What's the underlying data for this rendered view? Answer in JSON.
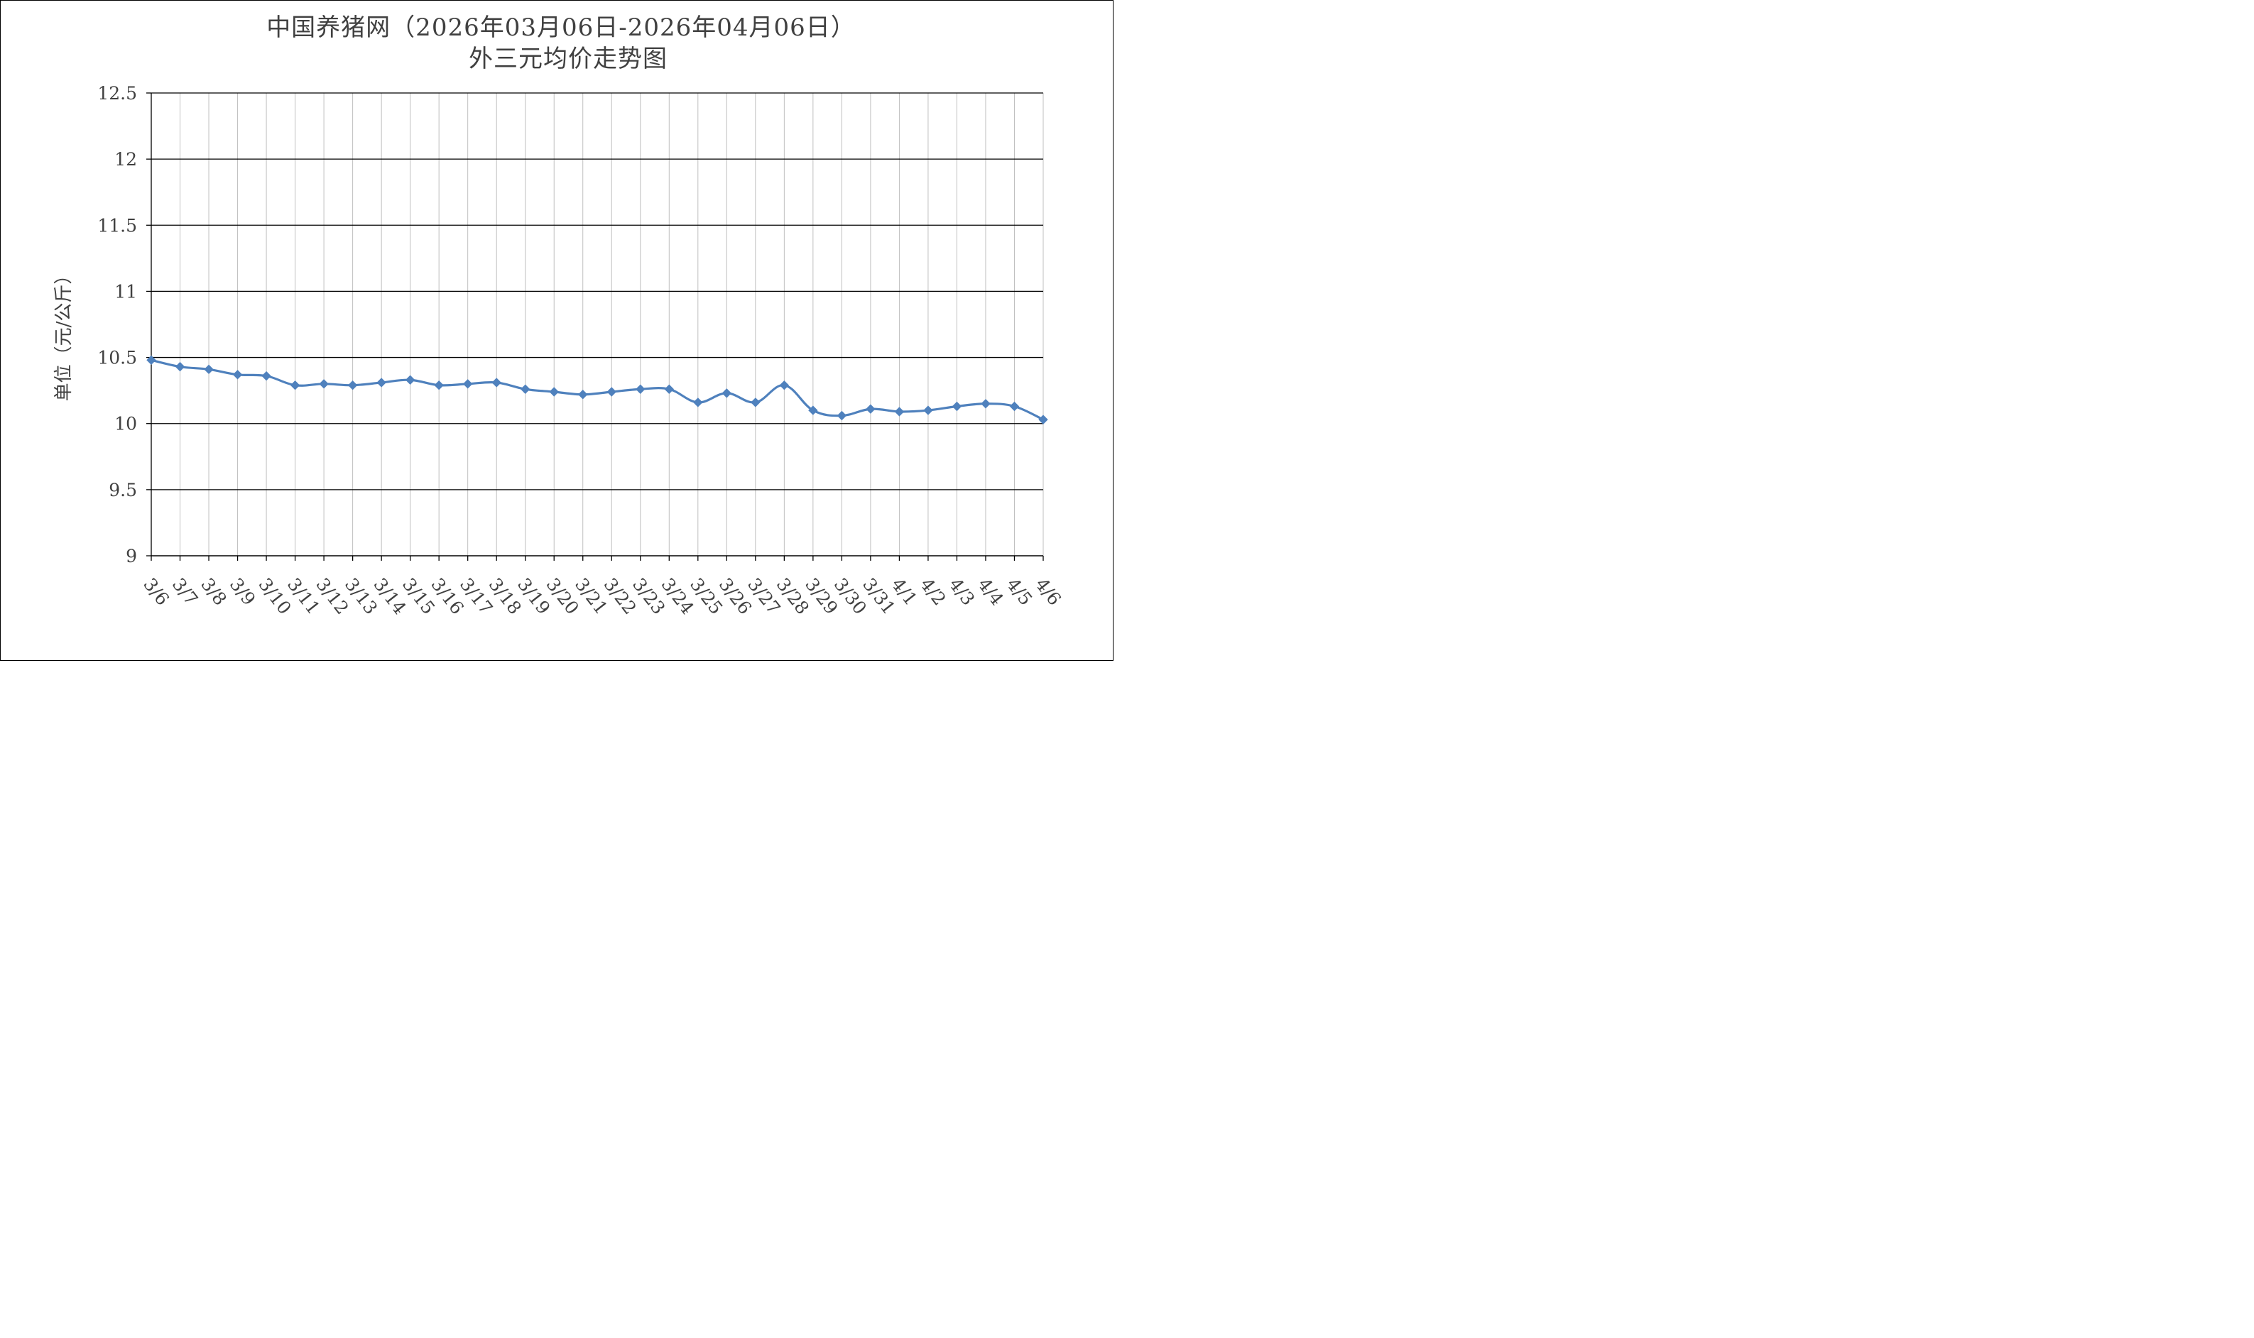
{
  "chart_data": {
    "type": "line",
    "title": "中国养猪网（2026年03月06日-2026年04月06日）",
    "subtitle": "外三元均价走势图",
    "xlabel": "",
    "ylabel": "单位（元/公斤）",
    "ylim": [
      9,
      12.5
    ],
    "yticks": [
      "9",
      "9.5",
      "10",
      "10.5",
      "11",
      "11.5",
      "12",
      "12.5"
    ],
    "grid": "horizontal-and-vertical",
    "series_color": "#4f81bd",
    "categories": [
      "3/6",
      "3/7",
      "3/8",
      "3/9",
      "3/10",
      "3/11",
      "3/12",
      "3/13",
      "3/14",
      "3/15",
      "3/16",
      "3/17",
      "3/18",
      "3/19",
      "3/20",
      "3/21",
      "3/22",
      "3/23",
      "3/24",
      "3/25",
      "3/26",
      "3/27",
      "3/28",
      "3/29",
      "3/30",
      "3/31",
      "4/1",
      "4/2",
      "4/3",
      "4/4",
      "4/5",
      "4/6"
    ],
    "values": [
      10.48,
      10.43,
      10.41,
      10.37,
      10.36,
      10.29,
      10.3,
      10.29,
      10.31,
      10.33,
      10.29,
      10.3,
      10.31,
      10.26,
      10.24,
      10.22,
      10.24,
      10.26,
      10.26,
      10.16,
      10.23,
      10.16,
      10.29,
      10.1,
      10.06,
      10.11,
      10.09,
      10.1,
      10.13,
      10.15,
      10.13,
      10.03
    ]
  }
}
